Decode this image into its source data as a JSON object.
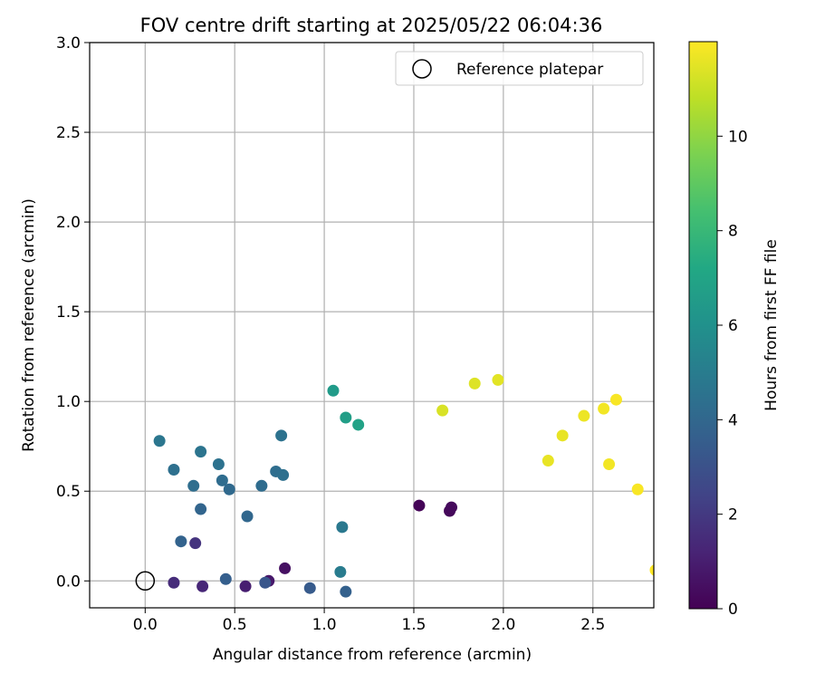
{
  "chart_data": {
    "type": "scatter",
    "title": "FOV centre drift starting at 2025/05/22 06:04:36",
    "xlabel": "Angular distance from reference (arcmin)",
    "ylabel": "Rotation from reference (arcmin)",
    "xlim": [
      -0.31,
      2.84
    ],
    "ylim": [
      -0.15,
      3.0
    ],
    "x_ticks": [
      0.0,
      0.5,
      1.0,
      1.5,
      2.0,
      2.5
    ],
    "x_tick_labels": [
      "0.0",
      "0.5",
      "1.0",
      "1.5",
      "2.0",
      "2.5"
    ],
    "y_ticks": [
      0.0,
      0.5,
      1.0,
      1.5,
      2.0,
      2.5,
      3.0
    ],
    "y_tick_labels": [
      "0.0",
      "0.5",
      "1.0",
      "1.5",
      "2.0",
      "2.5",
      "3.0"
    ],
    "grid": true,
    "legend": {
      "placement": "upper right",
      "label": "Reference platepar"
    },
    "reference_point": {
      "x": 0.0,
      "y": 0.0
    },
    "colorbar": {
      "label": "Hours from first FF file",
      "colormap": "viridis",
      "range": [
        0,
        12
      ],
      "ticks": [
        0,
        2,
        4,
        6,
        8,
        10
      ],
      "tick_labels": [
        "0",
        "2",
        "4",
        "6",
        "8",
        "10"
      ]
    },
    "points": [
      {
        "x": 1.53,
        "y": 0.42,
        "hours": 0.1
      },
      {
        "x": 1.7,
        "y": 0.39,
        "hours": 0.2
      },
      {
        "x": 1.71,
        "y": 0.41,
        "hours": 0.3
      },
      {
        "x": 0.78,
        "y": 0.07,
        "hours": 0.5
      },
      {
        "x": 0.69,
        "y": 0.0,
        "hours": 0.8
      },
      {
        "x": 0.56,
        "y": -0.03,
        "hours": 1.0
      },
      {
        "x": 0.32,
        "y": -0.03,
        "hours": 1.3
      },
      {
        "x": 0.16,
        "y": -0.01,
        "hours": 1.5
      },
      {
        "x": 0.28,
        "y": 0.21,
        "hours": 1.8
      },
      {
        "x": 0.67,
        "y": -0.01,
        "hours": 3.2
      },
      {
        "x": 0.92,
        "y": -0.04,
        "hours": 3.4
      },
      {
        "x": 0.45,
        "y": 0.01,
        "hours": 3.6
      },
      {
        "x": 1.12,
        "y": -0.06,
        "hours": 3.7
      },
      {
        "x": 0.2,
        "y": 0.22,
        "hours": 3.8
      },
      {
        "x": 0.31,
        "y": 0.4,
        "hours": 3.9
      },
      {
        "x": 0.57,
        "y": 0.36,
        "hours": 4.0
      },
      {
        "x": 0.47,
        "y": 0.51,
        "hours": 4.1
      },
      {
        "x": 0.43,
        "y": 0.56,
        "hours": 4.2
      },
      {
        "x": 0.27,
        "y": 0.53,
        "hours": 4.3
      },
      {
        "x": 0.16,
        "y": 0.62,
        "hours": 4.4
      },
      {
        "x": 0.41,
        "y": 0.65,
        "hours": 4.5
      },
      {
        "x": 0.31,
        "y": 0.72,
        "hours": 4.6
      },
      {
        "x": 0.08,
        "y": 0.78,
        "hours": 4.7
      },
      {
        "x": 0.65,
        "y": 0.53,
        "hours": 4.2
      },
      {
        "x": 0.73,
        "y": 0.61,
        "hours": 4.3
      },
      {
        "x": 0.77,
        "y": 0.59,
        "hours": 4.4
      },
      {
        "x": 0.76,
        "y": 0.81,
        "hours": 4.5
      },
      {
        "x": 1.1,
        "y": 0.3,
        "hours": 4.8
      },
      {
        "x": 1.09,
        "y": 0.05,
        "hours": 5.0
      },
      {
        "x": 1.05,
        "y": 1.06,
        "hours": 6.5
      },
      {
        "x": 1.12,
        "y": 0.91,
        "hours": 6.7
      },
      {
        "x": 1.19,
        "y": 0.87,
        "hours": 6.9
      },
      {
        "x": 1.66,
        "y": 0.95,
        "hours": 11.3
      },
      {
        "x": 1.84,
        "y": 1.1,
        "hours": 11.4
      },
      {
        "x": 1.97,
        "y": 1.12,
        "hours": 11.5
      },
      {
        "x": 2.25,
        "y": 0.67,
        "hours": 11.6
      },
      {
        "x": 2.33,
        "y": 0.81,
        "hours": 11.6
      },
      {
        "x": 2.45,
        "y": 0.92,
        "hours": 11.7
      },
      {
        "x": 2.56,
        "y": 0.96,
        "hours": 11.8
      },
      {
        "x": 2.59,
        "y": 0.65,
        "hours": 11.8
      },
      {
        "x": 2.63,
        "y": 1.01,
        "hours": 11.9
      },
      {
        "x": 2.75,
        "y": 0.51,
        "hours": 11.9
      },
      {
        "x": 2.85,
        "y": 0.06,
        "hours": 12.0
      }
    ]
  }
}
